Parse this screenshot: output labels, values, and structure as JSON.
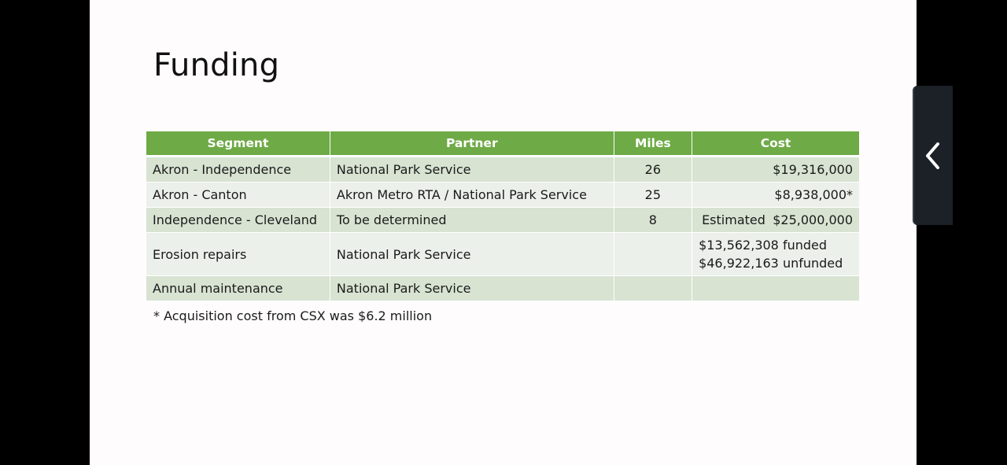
{
  "slide": {
    "title": "Funding",
    "footnote": "* Acquisition cost from CSX was $6.2 million"
  },
  "table": {
    "headers": {
      "segment": "Segment",
      "partner": "Partner",
      "miles": "Miles",
      "cost": "Cost"
    },
    "rows": [
      {
        "segment": "Akron - Independence",
        "partner": "National Park Service",
        "miles": "26",
        "cost": "$19,316,000"
      },
      {
        "segment": "Akron - Canton",
        "partner": "Akron Metro RTA / National Park Service",
        "miles": "25",
        "cost": "$8,938,000*"
      },
      {
        "segment": "Independence - Cleveland",
        "partner": "To be determined",
        "miles": "8",
        "cost_prefix": "Estimated",
        "cost": "$25,000,000"
      },
      {
        "segment": "Erosion repairs",
        "partner": "National Park Service",
        "miles": "",
        "cost_line1": "$13,562,308 funded",
        "cost_line2": "$46,922,163 unfunded"
      },
      {
        "segment": "Annual maintenance",
        "partner": "National Park Service",
        "miles": "",
        "cost": ""
      }
    ]
  },
  "viewer": {
    "prev_icon": "chevron-left-icon"
  }
}
